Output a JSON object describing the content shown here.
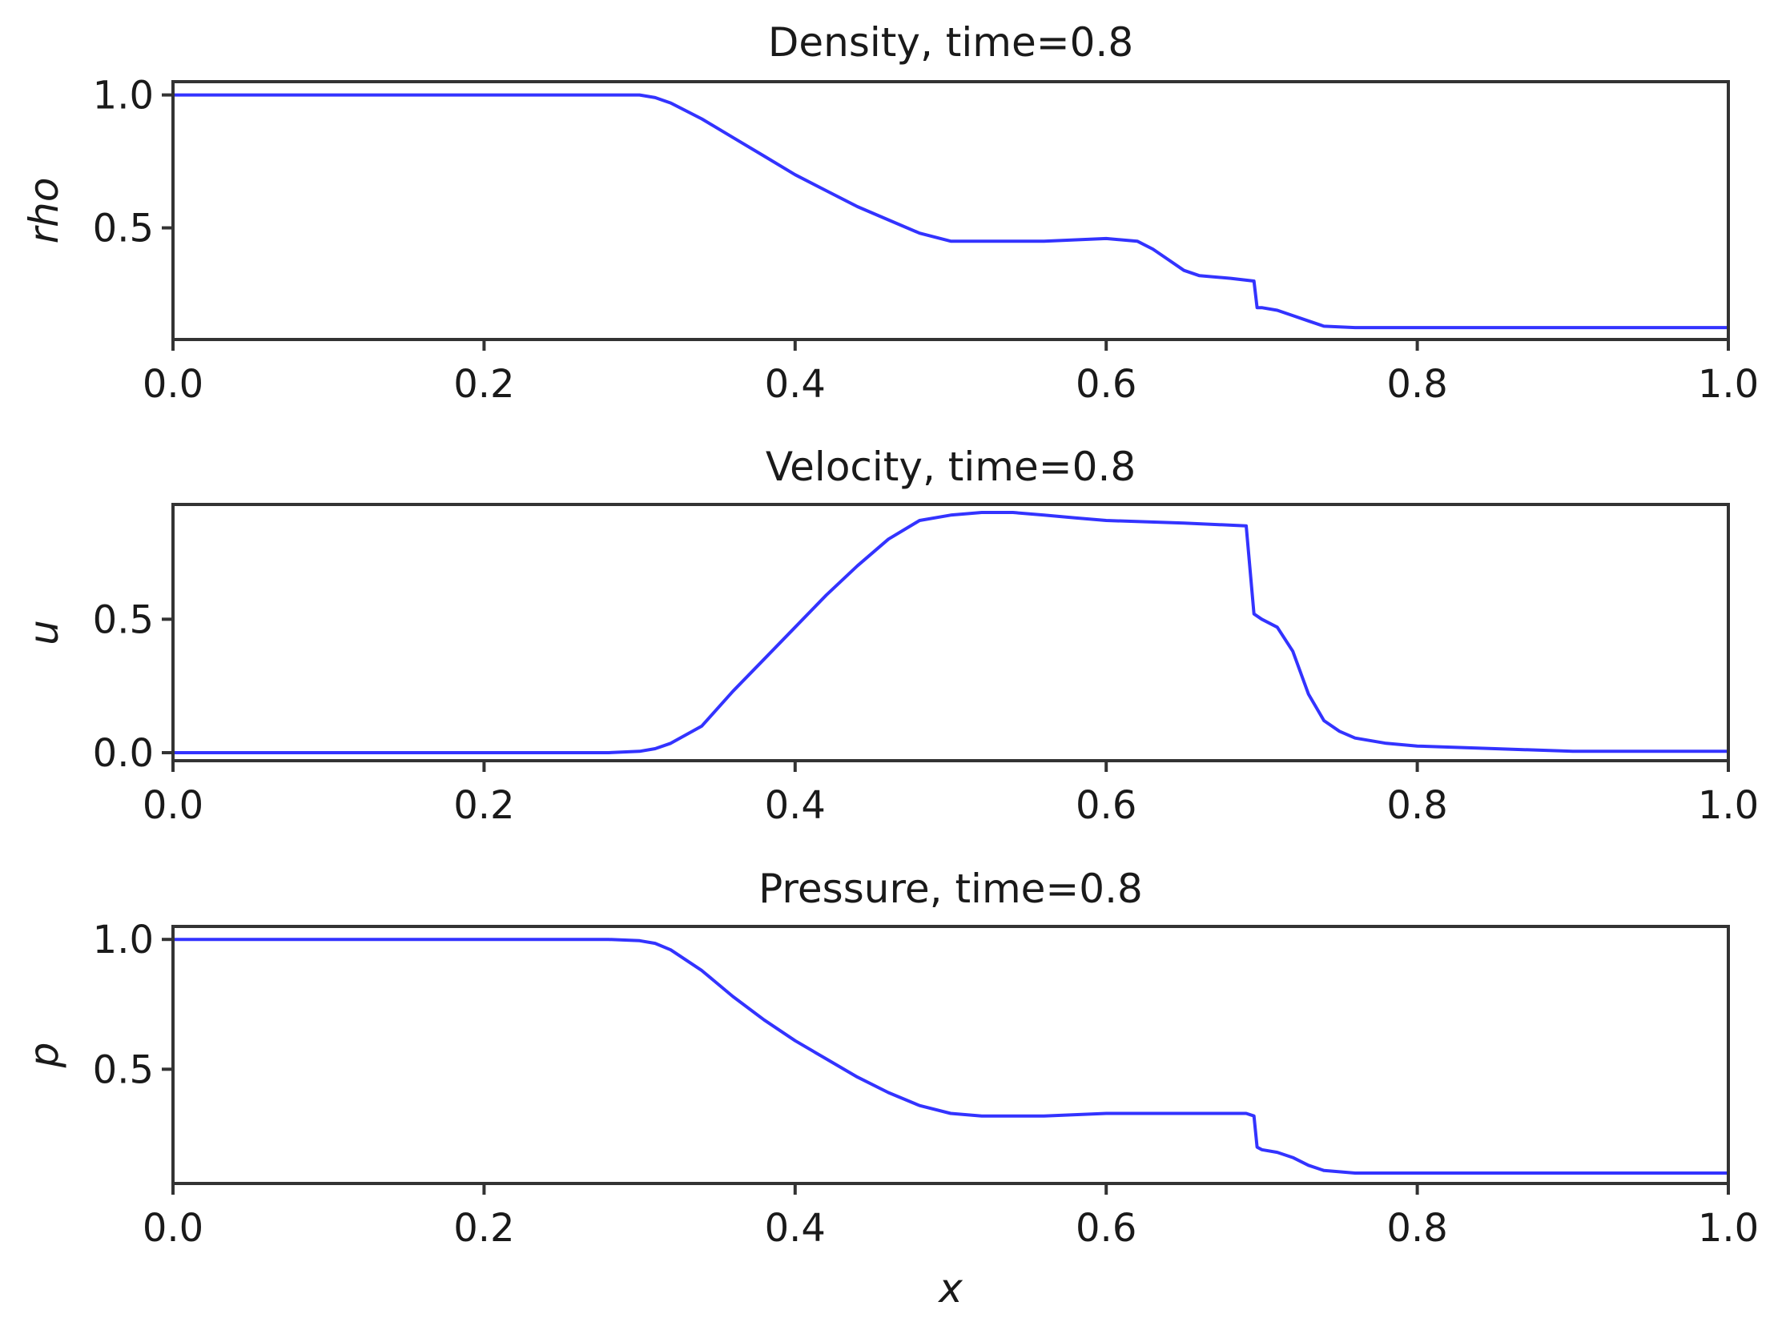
{
  "figure": {
    "line_color": "#3333ff"
  },
  "chart_data": [
    {
      "type": "line",
      "title": "Density, time=0.8",
      "xlabel": "",
      "ylabel": "rho",
      "xlim": [
        0.0,
        1.0
      ],
      "ylim": [
        0.08,
        1.05
      ],
      "xticks": [
        "0.0",
        "0.2",
        "0.4",
        "0.6",
        "0.8",
        "1.0"
      ],
      "yticks": [
        "0.5",
        "1.0"
      ],
      "grid": false,
      "series": [
        {
          "x": [
            0.0,
            0.28,
            0.3,
            0.31,
            0.32,
            0.34,
            0.36,
            0.38,
            0.4,
            0.42,
            0.44,
            0.46,
            0.48,
            0.5,
            0.52,
            0.56,
            0.6,
            0.62,
            0.63,
            0.64,
            0.65,
            0.66,
            0.68,
            0.695,
            0.697,
            0.7,
            0.71,
            0.72,
            0.73,
            0.74,
            0.76,
            1.0
          ],
          "y": [
            1.0,
            1.0,
            1.0,
            0.99,
            0.97,
            0.91,
            0.84,
            0.77,
            0.7,
            0.64,
            0.58,
            0.53,
            0.48,
            0.45,
            0.45,
            0.45,
            0.46,
            0.45,
            0.42,
            0.38,
            0.34,
            0.32,
            0.31,
            0.3,
            0.2,
            0.2,
            0.19,
            0.17,
            0.15,
            0.13,
            0.125,
            0.125
          ]
        }
      ]
    },
    {
      "type": "line",
      "title": "Velocity, time=0.8",
      "xlabel": "",
      "ylabel": "u",
      "xlim": [
        0.0,
        1.0
      ],
      "ylim": [
        -0.03,
        0.93
      ],
      "xticks": [
        "0.0",
        "0.2",
        "0.4",
        "0.6",
        "0.8",
        "1.0"
      ],
      "yticks": [
        "0.0",
        "0.5"
      ],
      "grid": false,
      "series": [
        {
          "x": [
            0.0,
            0.28,
            0.3,
            0.31,
            0.32,
            0.34,
            0.36,
            0.38,
            0.4,
            0.42,
            0.44,
            0.46,
            0.48,
            0.5,
            0.52,
            0.54,
            0.56,
            0.58,
            0.6,
            0.65,
            0.69,
            0.695,
            0.7,
            0.71,
            0.72,
            0.73,
            0.74,
            0.75,
            0.76,
            0.78,
            0.8,
            0.85,
            0.9,
            1.0
          ],
          "y": [
            0.0,
            0.0,
            0.005,
            0.015,
            0.035,
            0.1,
            0.23,
            0.35,
            0.47,
            0.59,
            0.7,
            0.8,
            0.87,
            0.89,
            0.9,
            0.9,
            0.89,
            0.88,
            0.87,
            0.86,
            0.85,
            0.52,
            0.5,
            0.47,
            0.38,
            0.22,
            0.12,
            0.08,
            0.055,
            0.035,
            0.025,
            0.015,
            0.005,
            0.005
          ]
        }
      ]
    },
    {
      "type": "line",
      "title": "Pressure, time=0.8",
      "xlabel": "x",
      "ylabel": "p",
      "xlim": [
        0.0,
        1.0
      ],
      "ylim": [
        0.06,
        1.05
      ],
      "xticks": [
        "0.0",
        "0.2",
        "0.4",
        "0.6",
        "0.8",
        "1.0"
      ],
      "yticks": [
        "0.5",
        "1.0"
      ],
      "grid": false,
      "series": [
        {
          "x": [
            0.0,
            0.28,
            0.3,
            0.31,
            0.32,
            0.34,
            0.36,
            0.38,
            0.4,
            0.42,
            0.44,
            0.46,
            0.48,
            0.5,
            0.52,
            0.56,
            0.6,
            0.65,
            0.69,
            0.695,
            0.697,
            0.7,
            0.71,
            0.72,
            0.73,
            0.74,
            0.76,
            1.0
          ],
          "y": [
            1.0,
            1.0,
            0.995,
            0.985,
            0.96,
            0.88,
            0.78,
            0.69,
            0.61,
            0.54,
            0.47,
            0.41,
            0.36,
            0.33,
            0.32,
            0.32,
            0.33,
            0.33,
            0.33,
            0.32,
            0.2,
            0.19,
            0.18,
            0.16,
            0.13,
            0.11,
            0.1,
            0.1
          ]
        }
      ]
    }
  ]
}
